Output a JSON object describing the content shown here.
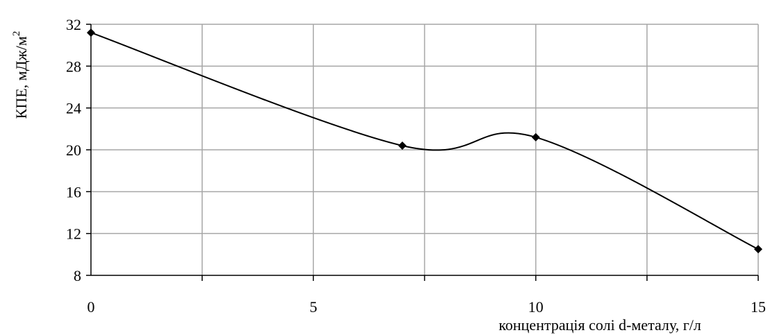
{
  "chart_data": {
    "type": "line",
    "title": "",
    "xlabel": "концентрація солі d-металу, г/л",
    "ylabel": "КПЕ, мДж/м",
    "ylabel_superscript": "2",
    "xlim": [
      0,
      15
    ],
    "ylim": [
      8,
      32
    ],
    "x_ticks": [
      0,
      5,
      10,
      15
    ],
    "x_minor_gridlines": [
      2.5,
      7.5,
      12.5
    ],
    "y_ticks": [
      8,
      12,
      16,
      20,
      24,
      28,
      32
    ],
    "grid": true,
    "smoothed": true,
    "marker": "diamond",
    "color": "#000000",
    "series": [
      {
        "x": [
          0,
          7,
          10,
          15
        ],
        "y": [
          31.2,
          20.4,
          21.2,
          10.5
        ]
      }
    ]
  }
}
